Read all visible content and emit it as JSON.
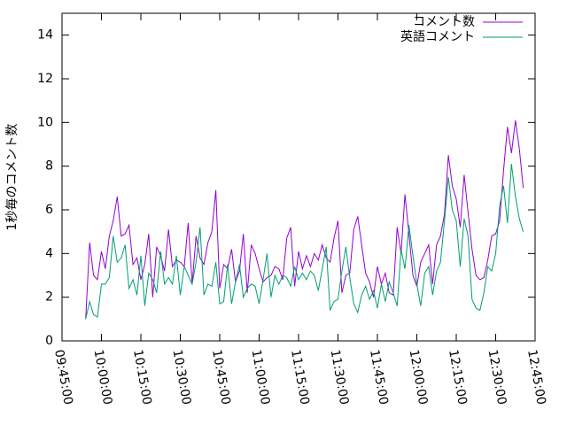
{
  "chart_data": {
    "type": "line",
    "y_label": "1秒毎のコメント数",
    "x": [
      "09:54:00",
      "09:55:30",
      "09:57:00",
      "09:58:30",
      "10:00:00",
      "10:01:30",
      "10:03:00",
      "10:04:30",
      "10:06:00",
      "10:07:30",
      "10:09:00",
      "10:10:30",
      "10:12:00",
      "10:13:30",
      "10:15:00",
      "10:16:30",
      "10:18:00",
      "10:19:30",
      "10:21:00",
      "10:22:30",
      "10:24:00",
      "10:25:30",
      "10:27:00",
      "10:28:30",
      "10:30:00",
      "10:31:30",
      "10:33:00",
      "10:34:30",
      "10:36:00",
      "10:37:30",
      "10:39:00",
      "10:40:30",
      "10:42:00",
      "10:43:30",
      "10:45:00",
      "10:46:30",
      "10:48:00",
      "10:49:30",
      "10:51:00",
      "10:52:30",
      "10:54:00",
      "10:55:30",
      "10:57:00",
      "10:58:30",
      "11:00:00",
      "11:01:30",
      "11:03:00",
      "11:04:30",
      "11:06:00",
      "11:07:30",
      "11:09:00",
      "11:10:30",
      "11:12:00",
      "11:13:30",
      "11:15:00",
      "11:16:30",
      "11:18:00",
      "11:19:30",
      "11:21:00",
      "11:22:30",
      "11:24:00",
      "11:25:30",
      "11:27:00",
      "11:28:30",
      "11:30:00",
      "11:31:30",
      "11:33:00",
      "11:34:30",
      "11:36:00",
      "11:37:30",
      "11:39:00",
      "11:40:30",
      "11:42:00",
      "11:43:30",
      "11:45:00",
      "11:46:30",
      "11:48:00",
      "11:49:30",
      "11:51:00",
      "11:52:30",
      "11:54:00",
      "11:55:30",
      "11:57:00",
      "11:58:30",
      "12:00:00",
      "12:01:30",
      "12:03:00",
      "12:04:30",
      "12:06:00",
      "12:07:30",
      "12:09:00",
      "12:10:30",
      "12:12:00",
      "12:13:30",
      "12:15:00",
      "12:16:30",
      "12:18:00",
      "12:19:30",
      "12:21:00",
      "12:22:30",
      "12:24:00",
      "12:25:30",
      "12:27:00",
      "12:28:30",
      "12:30:00",
      "12:31:30",
      "12:33:00",
      "12:34:30",
      "12:36:00",
      "12:37:30",
      "12:39:00",
      "12:40:30"
    ],
    "series": [
      {
        "name": "コメント数",
        "color": "#9400d3",
        "values": [
          1.0,
          4.5,
          3.0,
          2.8,
          4.1,
          3.3,
          4.8,
          5.5,
          6.6,
          4.8,
          4.9,
          5.3,
          3.5,
          3.8,
          2.8,
          3.5,
          4.9,
          2.0,
          4.3,
          3.9,
          3.2,
          5.1,
          3.4,
          3.7,
          3.6,
          3.4,
          5.4,
          2.6,
          4.8,
          3.8,
          3.5,
          4.5,
          5.0,
          6.9,
          2.4,
          3.5,
          3.3,
          4.2,
          2.7,
          3.2,
          4.9,
          2.2,
          4.4,
          4.0,
          3.3,
          2.7,
          2.9,
          3.0,
          3.4,
          3.3,
          2.8,
          4.7,
          5.2,
          2.5,
          4.1,
          3.3,
          3.9,
          3.4,
          4.0,
          3.7,
          4.4,
          3.8,
          3.6,
          4.7,
          5.5,
          2.2,
          3.0,
          3.1,
          5.1,
          5.7,
          4.4,
          3.1,
          2.7,
          2.0,
          3.4,
          2.6,
          3.1,
          2.2,
          2.1,
          5.2,
          4.0,
          6.7,
          4.9,
          3.0,
          2.5,
          3.6,
          4.0,
          4.4,
          2.6,
          4.4,
          4.8,
          5.8,
          8.5,
          7.1,
          6.5,
          5.2,
          7.6,
          5.9,
          4.2,
          3.0,
          2.8,
          2.9,
          3.7,
          4.8,
          4.9,
          5.5,
          7.8,
          9.8,
          8.6,
          10.1,
          8.8,
          7.0
        ]
      },
      {
        "name": "英語コメント",
        "color": "#009e73",
        "values": [
          1.0,
          1.8,
          1.2,
          1.1,
          2.6,
          2.6,
          2.9,
          4.8,
          3.6,
          3.8,
          4.4,
          2.4,
          2.8,
          2.1,
          3.9,
          1.6,
          3.1,
          2.8,
          2.2,
          4.1,
          2.6,
          2.9,
          2.6,
          3.9,
          2.1,
          3.4,
          3.0,
          2.6,
          3.6,
          5.2,
          2.1,
          2.6,
          2.5,
          3.6,
          1.7,
          1.8,
          3.5,
          1.7,
          2.7,
          3.5,
          2.0,
          2.4,
          2.6,
          2.5,
          1.7,
          2.8,
          4.0,
          2.0,
          3.0,
          2.6,
          3.0,
          2.9,
          2.5,
          3.4,
          2.8,
          3.1,
          2.8,
          3.2,
          3.0,
          2.3,
          3.3,
          4.3,
          1.4,
          1.8,
          1.9,
          3.2,
          4.3,
          2.9,
          1.7,
          1.3,
          2.1,
          2.5,
          1.9,
          2.3,
          1.5,
          2.6,
          1.8,
          2.7,
          2.2,
          1.6,
          4.2,
          3.3,
          5.3,
          3.9,
          2.6,
          1.6,
          3.1,
          3.4,
          2.1,
          3.2,
          3.6,
          5.5,
          7.5,
          6.0,
          5.5,
          3.4,
          5.6,
          4.8,
          1.9,
          1.5,
          1.4,
          2.2,
          3.4,
          3.2,
          4.0,
          6.2,
          7.1,
          5.4,
          8.1,
          6.6,
          5.6,
          5.0
        ]
      }
    ],
    "xlim": [
      "09:45:00",
      "12:45:00"
    ],
    "xticks": [
      "09:45:00",
      "10:00:00",
      "10:15:00",
      "10:30:00",
      "10:45:00",
      "11:00:00",
      "11:15:00",
      "11:30:00",
      "11:45:00",
      "12:00:00",
      "12:15:00",
      "12:30:00",
      "12:45:00"
    ],
    "ylim": [
      0,
      15
    ],
    "yticks": [
      0,
      2,
      4,
      6,
      8,
      10,
      12,
      14
    ],
    "legend": "top-right"
  }
}
